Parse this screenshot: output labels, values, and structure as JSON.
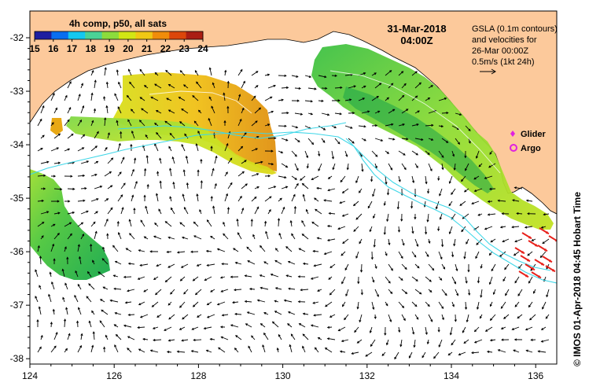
{
  "colorbar": {
    "title": "4h comp, p50, all sats",
    "ticks": [
      "15",
      "16",
      "17",
      "18",
      "19",
      "20",
      "21",
      "22",
      "23",
      "24"
    ],
    "colors": [
      "#1e1ea0",
      "#0a6ef0",
      "#14c8f0",
      "#4bd296",
      "#8cdc3c",
      "#d2e614",
      "#f0c814",
      "#f08c0a",
      "#dc460a",
      "#aa1e14"
    ]
  },
  "header": {
    "date": "31-Mar-2018",
    "time": "04:00Z"
  },
  "info": {
    "line1": "GSLA (0.1m contours)",
    "line2": "and velocities for",
    "line3": "26-Mar 00:00Z",
    "line4": "0.5m/s (1kt 24h)"
  },
  "legend": {
    "glider": "Glider",
    "argo": "Argo"
  },
  "credit": "© IMOS 01-Apr-2018 04:45 Hobart Time",
  "axes": {
    "x_ticks": [
      "124",
      "126",
      "128",
      "130",
      "132",
      "134",
      "136"
    ],
    "y_ticks": [
      "-32",
      "-33",
      "-34",
      "-35",
      "-36",
      "-37",
      "-38"
    ],
    "xlim": [
      124,
      136.5
    ],
    "ylim": [
      -38.1,
      -31.5
    ]
  },
  "colors": {
    "land": "#fcc99b",
    "contour": "#3fd7e8",
    "arrow": "#000000",
    "fast_arrow": "#e8201a"
  }
}
